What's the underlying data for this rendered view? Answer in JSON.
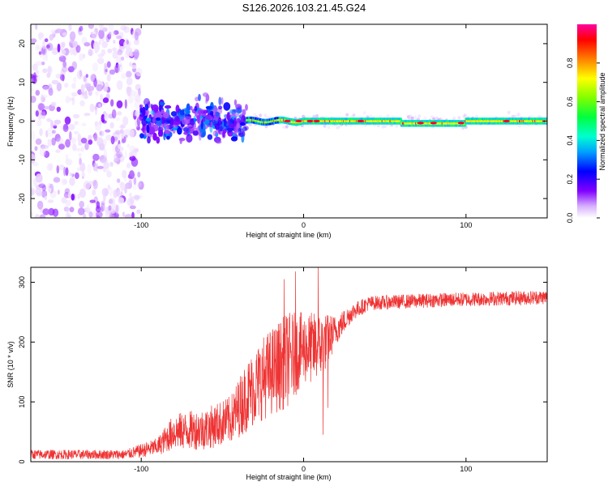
{
  "title": "S126.2026.103.21.45.G24",
  "chart_data": [
    {
      "type": "heatmap",
      "name": "spectrogram",
      "xlabel": "Height of straight line (km)",
      "ylabel": "Frequency (Hz)",
      "xlim": [
        -168,
        150
      ],
      "ylim": [
        -25,
        25
      ],
      "xticks": [
        -100,
        0,
        100
      ],
      "yticks": [
        -20,
        -10,
        0,
        10,
        20
      ],
      "colorbar": {
        "label": "Normalized spectral amplitude",
        "range": [
          0,
          1
        ],
        "ticks": [
          0.0,
          0.2,
          0.4,
          0.6,
          0.8
        ],
        "colormap": [
          "#ffffff",
          "#e8d0ff",
          "#8000ff",
          "#0000ff",
          "#00c0ff",
          "#00ff80",
          "#80ff00",
          "#ffff00",
          "#ff8000",
          "#ff0000",
          "#ff00a0"
        ]
      },
      "description_regions": [
        {
          "x_range": [
            -168,
            -100
          ],
          "freq_spread": 25,
          "amplitude": [
            0.05,
            0.2
          ]
        },
        {
          "x_range": [
            -100,
            -35
          ],
          "freq_spread": 8,
          "amplitude": [
            0.15,
            0.4
          ]
        },
        {
          "x_range": [
            -35,
            150
          ],
          "freq_spread": 1,
          "amplitude": [
            0.4,
            1.0
          ]
        }
      ]
    },
    {
      "type": "line",
      "name": "snr",
      "xlabel": "Height of straight line (km)",
      "ylabel": "SNR (10 * v/v)",
      "xlim": [
        -168,
        150
      ],
      "ylim": [
        0,
        325
      ],
      "xticks": [
        -100,
        0,
        100
      ],
      "yticks": [
        0,
        100,
        200,
        300
      ],
      "color": "#ee3333",
      "profile": [
        {
          "x": -168,
          "y": 12,
          "noise": 8
        },
        {
          "x": -110,
          "y": 12,
          "noise": 8
        },
        {
          "x": -90,
          "y": 25,
          "noise": 15
        },
        {
          "x": -80,
          "y": 50,
          "noise": 30
        },
        {
          "x": -60,
          "y": 55,
          "noise": 35
        },
        {
          "x": -45,
          "y": 70,
          "noise": 40
        },
        {
          "x": -35,
          "y": 110,
          "noise": 60
        },
        {
          "x": -25,
          "y": 140,
          "noise": 70
        },
        {
          "x": -10,
          "y": 170,
          "noise": 80
        },
        {
          "x": 0,
          "y": 190,
          "noise": 60
        },
        {
          "x": 10,
          "y": 190,
          "noise": 60
        },
        {
          "x": 20,
          "y": 220,
          "noise": 25
        },
        {
          "x": 30,
          "y": 250,
          "noise": 15
        },
        {
          "x": 40,
          "y": 265,
          "noise": 12
        },
        {
          "x": 80,
          "y": 270,
          "noise": 12
        },
        {
          "x": 150,
          "y": 275,
          "noise": 12
        }
      ],
      "spikes": [
        {
          "x": -5,
          "y": 318
        },
        {
          "x": -12,
          "y": 305
        },
        {
          "x": 9,
          "y": 325
        },
        {
          "x": 12,
          "y": 45
        },
        {
          "x": 15,
          "y": 90
        }
      ]
    }
  ]
}
